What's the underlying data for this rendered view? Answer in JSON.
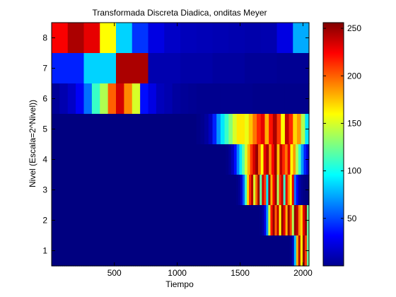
{
  "chart_data": {
    "type": "heatmap",
    "title": "Transformada Discreta Diadica, onditas Meyer",
    "xlabel": "Tiempo",
    "ylabel": "Nivel (Escala=2^Nivel))",
    "xlim": [
      1,
      2048
    ],
    "xticks": [
      500,
      1000,
      1500,
      2000
    ],
    "yticks": [
      1,
      2,
      3,
      4,
      5,
      6,
      7,
      8
    ],
    "colormap": "jet",
    "clim": [
      0,
      256
    ],
    "colorbar_ticks": [
      50,
      100,
      150,
      200,
      250
    ],
    "rows": [
      {
        "level": 8,
        "bins": 16,
        "values": [
          225,
          245,
          230,
          160,
          85,
          45,
          25,
          18,
          15,
          14,
          13,
          12,
          11,
          12,
          25,
          75
        ]
      },
      {
        "level": 7,
        "bins": 8,
        "values": [
          40,
          85,
          245,
          12,
          10,
          8,
          6,
          5
        ]
      },
      {
        "level": 6,
        "bins": 32,
        "values": [
          6,
          12,
          18,
          30,
          60,
          110,
          140,
          200,
          235,
          190,
          150,
          35,
          25,
          15,
          12,
          8,
          6,
          5,
          4,
          4,
          4,
          4,
          4,
          4,
          4,
          3,
          3,
          3,
          3,
          3,
          3,
          3
        ]
      },
      {
        "level": 5,
        "bins": 64,
        "values": [
          0,
          0,
          0,
          0,
          0,
          0,
          0,
          0,
          0,
          0,
          0,
          0,
          0,
          0,
          0,
          0,
          0,
          0,
          0,
          0,
          0,
          0,
          0,
          0,
          0,
          0,
          0,
          0,
          0,
          0,
          0,
          0,
          0,
          0,
          0,
          0,
          2,
          4,
          8,
          16,
          40,
          70,
          90,
          110,
          130,
          150,
          165,
          165,
          155,
          175,
          195,
          215,
          230,
          180,
          220,
          245,
          210,
          160,
          240,
          215,
          170,
          185,
          140,
          90
        ]
      },
      {
        "level": 4,
        "bins": 96,
        "values": [
          0,
          0,
          0,
          0,
          0,
          0,
          0,
          0,
          0,
          0,
          0,
          0,
          0,
          0,
          0,
          0,
          0,
          0,
          0,
          0,
          0,
          0,
          0,
          0,
          0,
          0,
          0,
          0,
          0,
          0,
          0,
          0,
          0,
          0,
          0,
          0,
          0,
          0,
          0,
          0,
          0,
          0,
          0,
          0,
          0,
          0,
          0,
          0,
          0,
          0,
          0,
          0,
          0,
          0,
          0,
          0,
          0,
          0,
          0,
          0,
          0,
          0,
          0,
          0,
          0,
          2,
          6,
          15,
          35,
          65,
          90,
          120,
          150,
          180,
          210,
          235,
          250,
          200,
          160,
          230,
          245,
          190,
          225,
          250,
          175,
          240,
          215,
          195,
          230,
          160,
          185,
          140,
          110,
          70,
          40,
          20
        ]
      },
      {
        "level": 3,
        "bins": 120,
        "values": [
          0,
          0,
          0,
          0,
          0,
          0,
          0,
          0,
          0,
          0,
          0,
          0,
          0,
          0,
          0,
          0,
          0,
          0,
          0,
          0,
          0,
          0,
          0,
          0,
          0,
          0,
          0,
          0,
          0,
          0,
          0,
          0,
          0,
          0,
          0,
          0,
          0,
          0,
          0,
          0,
          0,
          0,
          0,
          0,
          0,
          0,
          0,
          0,
          0,
          0,
          0,
          0,
          0,
          0,
          0,
          0,
          0,
          0,
          0,
          0,
          0,
          0,
          0,
          0,
          0,
          0,
          0,
          0,
          0,
          0,
          0,
          0,
          0,
          0,
          0,
          0,
          0,
          0,
          0,
          0,
          0,
          0,
          0,
          0,
          0,
          0,
          2,
          6,
          20,
          55,
          110,
          170,
          215,
          245,
          150,
          200,
          250,
          120,
          235,
          210,
          90,
          245,
          180,
          225,
          250,
          140,
          215,
          240,
          110,
          230,
          190,
          160,
          230,
          60,
          30,
          12,
          5,
          2,
          0,
          0
        ]
      },
      {
        "level": 2,
        "bins": 120,
        "values": [
          0,
          0,
          0,
          0,
          0,
          0,
          0,
          0,
          0,
          0,
          0,
          0,
          0,
          0,
          0,
          0,
          0,
          0,
          0,
          0,
          0,
          0,
          0,
          0,
          0,
          0,
          0,
          0,
          0,
          0,
          0,
          0,
          0,
          0,
          0,
          0,
          0,
          0,
          0,
          0,
          0,
          0,
          0,
          0,
          0,
          0,
          0,
          0,
          0,
          0,
          0,
          0,
          0,
          0,
          0,
          0,
          0,
          0,
          0,
          0,
          0,
          0,
          0,
          0,
          0,
          0,
          0,
          0,
          0,
          0,
          0,
          0,
          0,
          0,
          0,
          0,
          0,
          0,
          0,
          0,
          0,
          0,
          0,
          0,
          0,
          0,
          0,
          0,
          0,
          0,
          0,
          0,
          0,
          0,
          0,
          0,
          0,
          2,
          8,
          25,
          70,
          150,
          220,
          250,
          200,
          240,
          160,
          250,
          230,
          180,
          250,
          210,
          140,
          250,
          240,
          190,
          170,
          230,
          250,
          120
        ]
      },
      {
        "level": 1,
        "bins": 120,
        "values": [
          0,
          0,
          0,
          0,
          0,
          0,
          0,
          0,
          0,
          0,
          0,
          0,
          0,
          0,
          0,
          0,
          0,
          0,
          0,
          0,
          0,
          0,
          0,
          0,
          0,
          0,
          0,
          0,
          0,
          0,
          0,
          0,
          0,
          0,
          0,
          0,
          0,
          0,
          0,
          0,
          0,
          0,
          0,
          0,
          0,
          0,
          0,
          0,
          0,
          0,
          0,
          0,
          0,
          0,
          0,
          0,
          0,
          0,
          0,
          0,
          0,
          0,
          0,
          0,
          0,
          0,
          0,
          0,
          0,
          0,
          0,
          0,
          0,
          0,
          0,
          0,
          0,
          0,
          0,
          0,
          0,
          0,
          0,
          0,
          0,
          0,
          0,
          0,
          0,
          0,
          0,
          0,
          0,
          0,
          0,
          0,
          0,
          0,
          0,
          0,
          0,
          0,
          0,
          0,
          0,
          0,
          0,
          0,
          0,
          0,
          0,
          2,
          15,
          80,
          180,
          240,
          160,
          250,
          210,
          120
        ]
      }
    ]
  }
}
